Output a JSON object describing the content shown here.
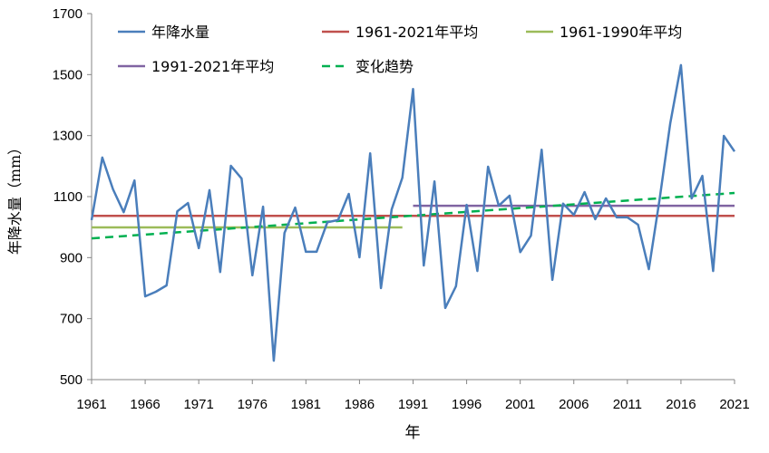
{
  "chart_data": {
    "type": "line",
    "title": "",
    "xlabel": "年",
    "ylabel": "年降水量（mm）",
    "xlim": [
      1961,
      2021
    ],
    "ylim": [
      500,
      1700
    ],
    "yticks": [
      500,
      700,
      900,
      1100,
      1300,
      1500,
      1700
    ],
    "xticks": [
      1961,
      1966,
      1971,
      1976,
      1981,
      1986,
      1991,
      1996,
      2001,
      2006,
      2011,
      2016,
      2021
    ],
    "grid": false,
    "legend_placement": "top",
    "series": [
      {
        "name": "年降水量",
        "color": "#4a7ebb",
        "style": "solid",
        "x": [
          1961,
          1962,
          1963,
          1964,
          1965,
          1966,
          1967,
          1968,
          1969,
          1970,
          1971,
          1972,
          1973,
          1974,
          1975,
          1976,
          1977,
          1978,
          1979,
          1980,
          1981,
          1982,
          1983,
          1984,
          1985,
          1986,
          1987,
          1988,
          1989,
          1990,
          1991,
          1992,
          1993,
          1994,
          1995,
          1996,
          1997,
          1998,
          1999,
          2000,
          2001,
          2002,
          2003,
          2004,
          2005,
          2006,
          2007,
          2008,
          2009,
          2010,
          2011,
          2012,
          2013,
          2014,
          2015,
          2016,
          2017,
          2018,
          2019,
          2020,
          2021
        ],
        "values": [
          1023,
          1228,
          1124,
          1049,
          1153,
          773,
          788,
          809,
          1052,
          1079,
          931,
          1121,
          853,
          1201,
          1159,
          842,
          1067,
          562,
          981,
          1064,
          919,
          919,
          1016,
          1023,
          1109,
          901,
          1242,
          800,
          1058,
          1162,
          1453,
          874,
          1150,
          735,
          806,
          1073,
          856,
          1198,
          1070,
          1103,
          918,
          972,
          1254,
          827,
          1077,
          1040,
          1115,
          1026,
          1094,
          1032,
          1032,
          1008,
          862,
          1090,
          1340,
          1531,
          1094,
          1168,
          856,
          1299,
          1248
        ]
      },
      {
        "name": "1961-2021年平均",
        "color": "#c0504d",
        "style": "solid",
        "x": [
          1961,
          2021
        ],
        "values": [
          1037,
          1037
        ]
      },
      {
        "name": "1961-1990年平均",
        "color": "#9bbb59",
        "style": "solid",
        "x": [
          1961,
          1990
        ],
        "values": [
          999,
          999
        ]
      },
      {
        "name": "1991-2021年平均",
        "color": "#8064a2",
        "style": "solid",
        "x": [
          1991,
          2021
        ],
        "values": [
          1070,
          1070
        ]
      },
      {
        "name": "变化趋势",
        "color": "#00b050",
        "style": "dashed",
        "x": [
          1961,
          2021
        ],
        "values": [
          963,
          1112
        ]
      }
    ]
  }
}
